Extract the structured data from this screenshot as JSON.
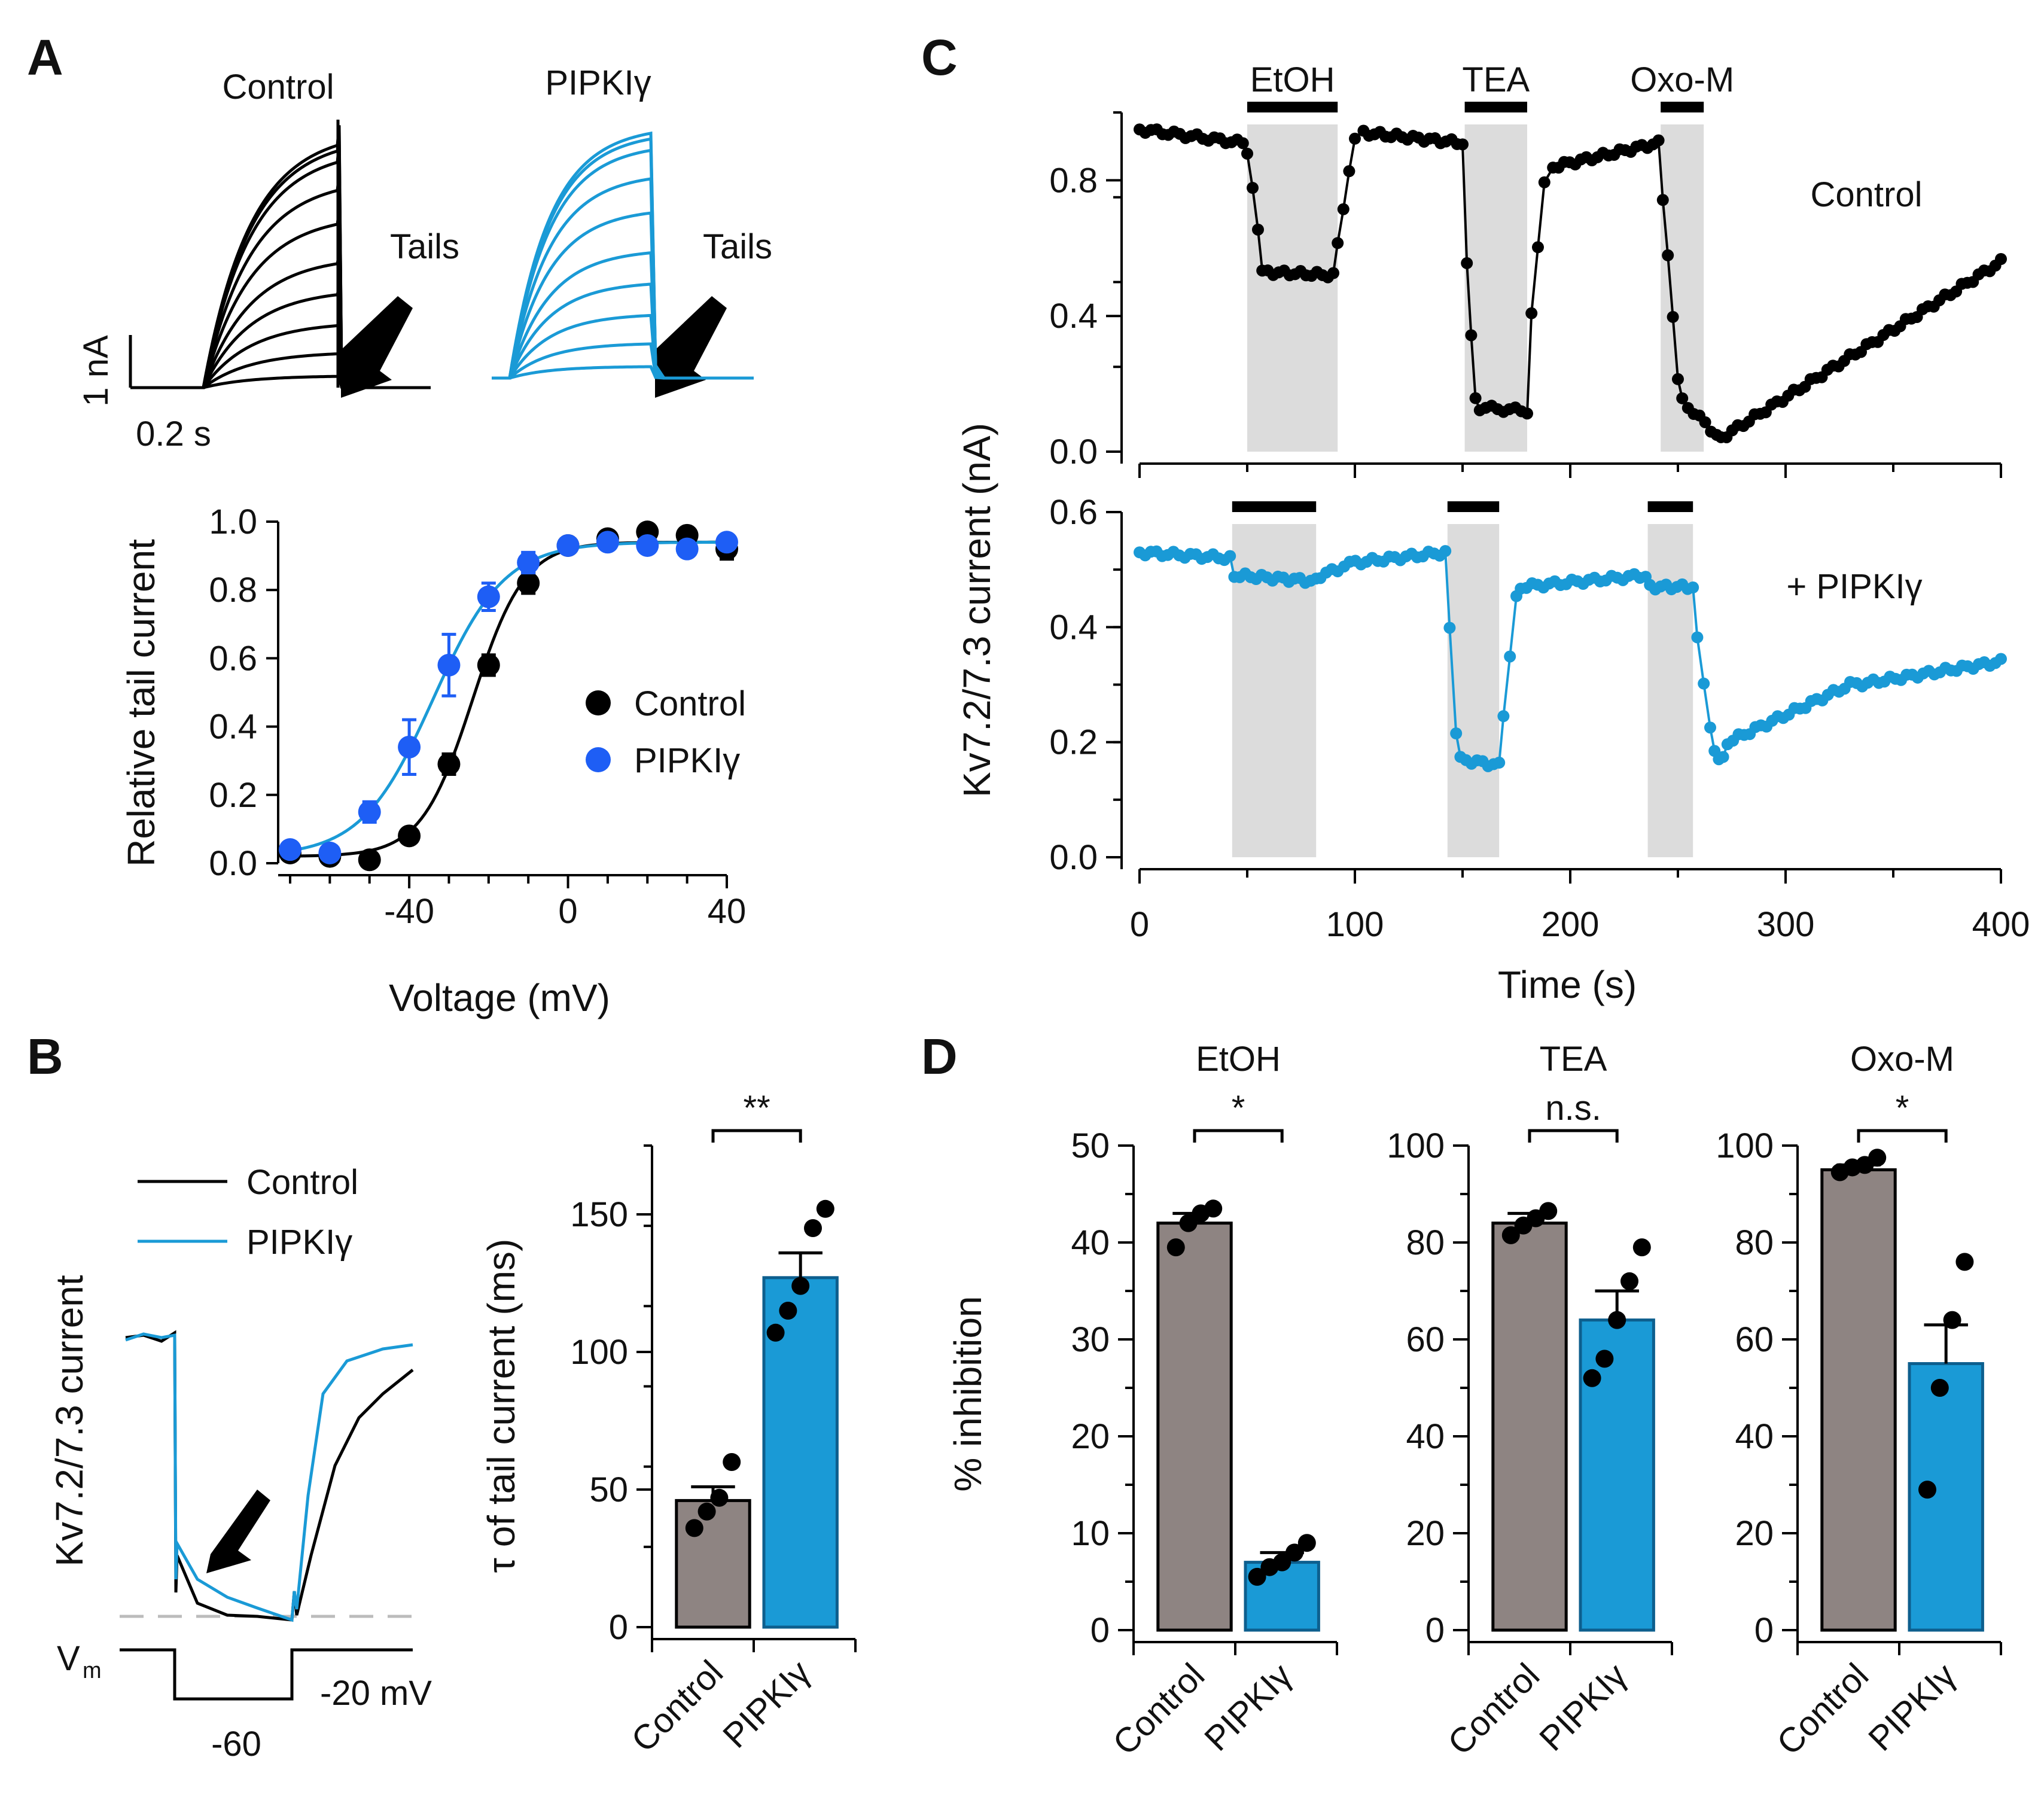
{
  "panel_labels": [
    "A",
    "B",
    "C",
    "D"
  ],
  "colors": {
    "control": "#000000",
    "pipki": "#1a9ad6",
    "pipki_dot": "#1e5ef5",
    "control_bar": "#8e8482",
    "pipki_bar": "#1a9ad6",
    "shade": "#dcdcdc"
  },
  "panelA": {
    "traces": {
      "control_label": "Control",
      "pipki_label": "PIPKIγ",
      "tails_label": "Tails",
      "tails_label_2": "Tails",
      "scale_y": "1 nA",
      "scale_x": "0.2 s"
    }
  },
  "panelB": {
    "traces": {
      "legend_control": "Control",
      "legend_pipki": "PIPKIγ",
      "ylabel": "Kv7.2/7.3 current",
      "vm_label": "V",
      "vm_sub": "m",
      "v_hold": "-20 mV",
      "v_step": "-60"
    }
  },
  "chart_data": [
    {
      "id": "A-activation",
      "type": "line",
      "xlabel": "Voltage (mV)",
      "ylabel": "Relative tail current",
      "xlim": [
        -70,
        40
      ],
      "ylim": [
        0,
        1.0
      ],
      "xticks": [
        "-40",
        "0",
        "40"
      ],
      "yticks": [
        "0.0",
        "0.2",
        "0.4",
        "0.6",
        "0.8",
        "1.0"
      ],
      "legend_position": "center-right",
      "series": [
        {
          "name": "Control",
          "x": [
            -70,
            -60,
            -50,
            -40,
            -30,
            -20,
            -10,
            0,
            10,
            20,
            30,
            40
          ],
          "y": [
            0.03,
            0.02,
            0.01,
            0.08,
            0.29,
            0.58,
            0.82,
            0.93,
            0.95,
            0.97,
            0.96,
            0.92
          ],
          "err": [
            0.01,
            0.01,
            0.01,
            0.02,
            0.03,
            0.03,
            0.03,
            0.02,
            0.02,
            0.02,
            0.02,
            0.03
          ],
          "fit_v_half": -24,
          "fit_slope": 6.5
        },
        {
          "name": "PIPKIγ",
          "x": [
            -70,
            -60,
            -50,
            -40,
            -30,
            -20,
            -10,
            0,
            10,
            20,
            30,
            40
          ],
          "y": [
            0.04,
            0.03,
            0.15,
            0.34,
            0.58,
            0.78,
            0.88,
            0.93,
            0.94,
            0.93,
            0.92,
            0.94
          ],
          "err": [
            0.01,
            0.01,
            0.03,
            0.08,
            0.09,
            0.04,
            0.03,
            0.02,
            0.02,
            0.02,
            0.02,
            0.02
          ],
          "fit_v_half": -34,
          "fit_slope": 9
        }
      ]
    },
    {
      "id": "B-tau",
      "type": "bar",
      "ylabel": "τ of tail current (ms)",
      "ylim": [
        0,
        175
      ],
      "yticks": [
        "0",
        "50",
        "100",
        "150"
      ],
      "categories": [
        "Control",
        "PIPKIγ"
      ],
      "values": [
        46,
        127
      ],
      "sem": [
        5,
        9
      ],
      "points": [
        [
          36,
          42,
          47,
          60
        ],
        [
          107,
          115,
          124,
          145,
          152
        ]
      ],
      "significance": "**"
    },
    {
      "id": "C-timecourse",
      "type": "scatter",
      "xlabel": "Time (s)",
      "ylabel": "Kv7.2/7.3 current (nA)",
      "xlim": [
        0,
        400
      ],
      "xticks": [
        "0",
        "100",
        "200",
        "300",
        "400"
      ],
      "drugs": [
        {
          "name": "EtOH",
          "start": 50,
          "end": 92
        },
        {
          "name": "TEA",
          "start": 151,
          "end": 180
        },
        {
          "name": "Oxo-M",
          "start": 242,
          "end": 262
        }
      ],
      "drugs_pipki": [
        {
          "start": 43,
          "end": 82
        },
        {
          "start": 143,
          "end": 167
        },
        {
          "start": 236,
          "end": 257
        }
      ],
      "series": [
        {
          "name": "Control",
          "ylim": [
            0,
            1.0
          ],
          "yticks": [
            "0.0",
            "0.4",
            "0.8"
          ],
          "baseline": 0.93,
          "segments": [
            [
              0,
              0.95,
              48,
              0.91
            ],
            [
              50,
              0.88,
              55,
              0.66
            ],
            [
              57,
              0.53,
              90,
              0.52
            ],
            [
              92,
              0.62,
              100,
              0.92
            ],
            [
              104,
              0.94,
              150,
              0.91
            ],
            [
              152,
              0.55,
              156,
              0.15
            ],
            [
              158,
              0.13,
              180,
              0.12
            ],
            [
              182,
              0.4,
              188,
              0.8
            ],
            [
              192,
              0.84,
              241,
              0.91
            ],
            [
              243,
              0.75,
              250,
              0.22
            ],
            [
              252,
              0.15,
              268,
              0.05
            ],
            [
              270,
              0.04,
              400,
              0.56
            ]
          ]
        },
        {
          "name": "+ PIPKIγ",
          "ylim": [
            0,
            0.6
          ],
          "yticks": [
            "0.0",
            "0.2",
            "0.4",
            "0.6"
          ],
          "segments": [
            [
              0,
              0.53,
              42,
              0.52
            ],
            [
              44,
              0.49,
              82,
              0.48
            ],
            [
              84,
              0.49,
              92,
              0.5
            ],
            [
              95,
              0.51,
              142,
              0.53
            ],
            [
              144,
              0.4,
              147,
              0.22
            ],
            [
              149,
              0.17,
              167,
              0.16
            ],
            [
              169,
              0.25,
              175,
              0.45
            ],
            [
              177,
              0.47,
              235,
              0.49
            ],
            [
              237,
              0.47,
              257,
              0.47
            ],
            [
              259,
              0.38,
              265,
              0.23
            ],
            [
              267,
              0.18,
              271,
              0.17
            ],
            [
              273,
              0.2,
              330,
              0.3
            ],
            [
              333,
              0.3,
              400,
              0.34
            ]
          ]
        }
      ]
    },
    {
      "id": "D-inhibition",
      "type": "bar",
      "ylabel": "% inhibition",
      "categories": [
        "Control",
        "PIPKIγ"
      ],
      "groups": [
        {
          "title": "EtOH",
          "ylim": [
            0,
            50
          ],
          "yticks": [
            "0",
            "10",
            "20",
            "30",
            "40",
            "50"
          ],
          "values": [
            42,
            7
          ],
          "sem": [
            1,
            1
          ],
          "points": [
            [
              39.5,
              42,
              43,
              43.5
            ],
            [
              5.5,
              6.5,
              7,
              8,
              9
            ]
          ],
          "significance": "*"
        },
        {
          "title": "TEA",
          "ylim": [
            0,
            100
          ],
          "yticks": [
            "0",
            "20",
            "40",
            "60",
            "80",
            "100"
          ],
          "values": [
            84,
            64
          ],
          "sem": [
            2,
            6
          ],
          "points": [
            [
              81.5,
              83.5,
              85,
              86.5
            ],
            [
              52,
              56,
              64,
              72,
              79
            ]
          ],
          "significance": "n.s."
        },
        {
          "title": "Oxo-M",
          "ylim": [
            0,
            100
          ],
          "yticks": [
            "0",
            "20",
            "40",
            "60",
            "80",
            "100"
          ],
          "values": [
            95,
            55
          ],
          "sem": [
            1,
            8
          ],
          "points": [
            [
              94.5,
              95.5,
              96,
              97.5
            ],
            [
              29,
              50,
              64,
              76
            ]
          ],
          "significance": "*"
        }
      ]
    }
  ]
}
